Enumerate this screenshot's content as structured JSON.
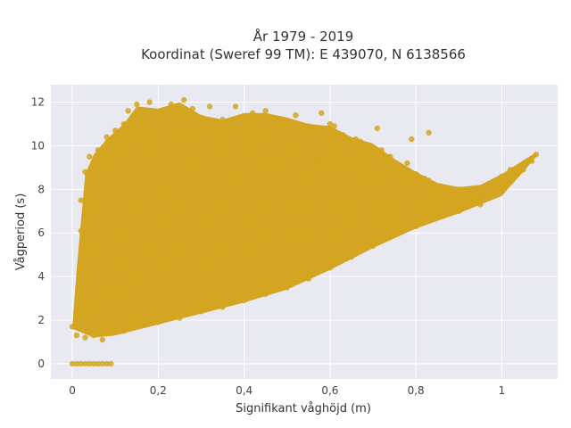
{
  "chart_data": {
    "type": "scatter",
    "title_line1": "År 1979 - 2019",
    "title_line2": "Koordinat (Sweref 99 TM): E 439070, N 6138566",
    "xlabel": "Signifikant våghöjd (m)",
    "ylabel": "Vågperiod (s)",
    "xlim": [
      -0.05,
      1.13
    ],
    "ylim": [
      -0.7,
      12.8
    ],
    "x_ticks": [
      0,
      0.2,
      0.4,
      0.6,
      0.8,
      1
    ],
    "x_tick_labels": [
      "0",
      "0,2",
      "0,4",
      "0,6",
      "0,8",
      "1"
    ],
    "y_ticks": [
      0,
      2,
      4,
      6,
      8,
      10,
      12
    ],
    "y_tick_labels": [
      "0",
      "2",
      "4",
      "6",
      "8",
      "10",
      "12"
    ],
    "grid": true,
    "marker_color": "#D4A520",
    "plot_background": "#E9E9F1",
    "series": [
      {
        "points": [
          [
            0.0,
            0.0
          ],
          [
            0.01,
            0.0
          ],
          [
            0.02,
            0.0
          ],
          [
            0.03,
            0.0
          ],
          [
            0.04,
            0.0
          ],
          [
            0.05,
            0.0
          ],
          [
            0.06,
            0.0
          ],
          [
            0.07,
            0.0
          ],
          [
            0.08,
            0.0
          ],
          [
            0.09,
            0.0
          ],
          [
            0.0,
            1.7
          ],
          [
            0.01,
            1.3
          ],
          [
            0.02,
            1.6
          ],
          [
            0.03,
            1.2
          ],
          [
            0.05,
            1.3
          ],
          [
            0.07,
            1.1
          ],
          [
            0.09,
            1.4
          ],
          [
            0.12,
            1.5
          ],
          [
            0.15,
            1.7
          ],
          [
            0.2,
            1.9
          ],
          [
            0.25,
            2.1
          ],
          [
            0.3,
            2.4
          ],
          [
            0.35,
            2.6
          ],
          [
            0.4,
            2.9
          ],
          [
            0.45,
            3.2
          ],
          [
            0.5,
            3.5
          ],
          [
            0.55,
            3.9
          ],
          [
            0.6,
            4.4
          ],
          [
            0.65,
            4.9
          ],
          [
            0.7,
            5.4
          ],
          [
            0.75,
            5.9
          ],
          [
            0.8,
            6.3
          ],
          [
            0.85,
            6.7
          ],
          [
            0.9,
            7.0
          ],
          [
            0.95,
            7.3
          ],
          [
            1.0,
            7.9
          ],
          [
            1.03,
            8.6
          ],
          [
            1.05,
            8.9
          ],
          [
            1.07,
            9.3
          ],
          [
            1.08,
            9.6
          ],
          [
            0.02,
            4.3
          ],
          [
            0.02,
            6.1
          ],
          [
            0.02,
            7.5
          ],
          [
            0.03,
            8.8
          ],
          [
            0.04,
            9.5
          ],
          [
            0.04,
            5.4
          ],
          [
            0.06,
            9.8
          ],
          [
            0.08,
            10.4
          ],
          [
            0.1,
            10.7
          ],
          [
            0.12,
            11.0
          ],
          [
            0.13,
            11.6
          ],
          [
            0.15,
            11.9
          ],
          [
            0.18,
            12.0
          ],
          [
            0.21,
            11.6
          ],
          [
            0.23,
            11.9
          ],
          [
            0.26,
            12.1
          ],
          [
            0.28,
            11.7
          ],
          [
            0.3,
            11.3
          ],
          [
            0.32,
            11.8
          ],
          [
            0.35,
            11.2
          ],
          [
            0.38,
            11.8
          ],
          [
            0.42,
            11.5
          ],
          [
            0.45,
            11.6
          ],
          [
            0.48,
            11.2
          ],
          [
            0.52,
            11.4
          ],
          [
            0.55,
            10.9
          ],
          [
            0.58,
            11.5
          ],
          [
            0.61,
            10.9
          ],
          [
            0.63,
            10.5
          ],
          [
            0.67,
            10.2
          ],
          [
            0.69,
            10.0
          ],
          [
            0.72,
            9.8
          ],
          [
            0.74,
            9.5
          ],
          [
            0.78,
            9.2
          ],
          [
            0.8,
            8.7
          ],
          [
            0.83,
            8.4
          ],
          [
            0.85,
            8.1
          ],
          [
            0.88,
            7.9
          ],
          [
            0.9,
            8.0
          ],
          [
            0.93,
            7.8
          ],
          [
            0.95,
            7.8
          ],
          [
            0.98,
            8.0
          ],
          [
            1.0,
            8.6
          ],
          [
            1.02,
            8.9
          ],
          [
            0.83,
            10.6
          ],
          [
            0.79,
            10.3
          ],
          [
            0.71,
            10.8
          ],
          [
            0.66,
            10.3
          ],
          [
            0.6,
            11.0
          ],
          [
            0.4,
            10.8
          ],
          [
            0.1,
            6.0
          ],
          [
            0.15,
            7.0
          ],
          [
            0.2,
            6.5
          ],
          [
            0.25,
            7.5
          ],
          [
            0.3,
            6.8
          ],
          [
            0.35,
            7.2
          ],
          [
            0.4,
            6.7
          ],
          [
            0.45,
            7.0
          ],
          [
            0.5,
            7.3
          ],
          [
            0.55,
            7.1
          ],
          [
            0.6,
            7.2
          ],
          [
            0.65,
            7.4
          ],
          [
            0.7,
            7.3
          ],
          [
            0.75,
            7.5
          ],
          [
            0.8,
            7.3
          ],
          [
            0.1,
            3.5
          ],
          [
            0.15,
            4.0
          ],
          [
            0.2,
            4.5
          ],
          [
            0.25,
            5.0
          ],
          [
            0.3,
            4.8
          ],
          [
            0.35,
            5.2
          ],
          [
            0.4,
            5.5
          ],
          [
            0.45,
            5.6
          ],
          [
            0.5,
            5.8
          ],
          [
            0.55,
            6.0
          ],
          [
            0.6,
            6.2
          ],
          [
            0.65,
            6.3
          ],
          [
            0.7,
            6.5
          ],
          [
            0.75,
            6.7
          ],
          [
            0.8,
            6.9
          ],
          [
            0.85,
            7.1
          ],
          [
            0.9,
            7.3
          ],
          [
            0.95,
            7.6
          ],
          [
            0.05,
            2.5
          ],
          [
            0.08,
            3.2
          ],
          [
            0.12,
            4.5
          ],
          [
            0.18,
            5.5
          ],
          [
            0.22,
            8.0
          ],
          [
            0.27,
            9.0
          ],
          [
            0.33,
            9.5
          ],
          [
            0.38,
            8.5
          ],
          [
            0.43,
            9.2
          ],
          [
            0.48,
            9.0
          ],
          [
            0.53,
            8.7
          ],
          [
            0.57,
            9.3
          ],
          [
            0.62,
            8.9
          ],
          [
            0.67,
            8.8
          ],
          [
            0.72,
            8.6
          ],
          [
            0.77,
            8.3
          ],
          [
            0.05,
            7.0
          ],
          [
            0.07,
            8.2
          ],
          [
            0.09,
            9.0
          ],
          [
            0.11,
            9.6
          ],
          [
            0.14,
            10.2
          ],
          [
            0.17,
            10.5
          ],
          [
            0.19,
            9.7
          ],
          [
            0.24,
            10.6
          ],
          [
            0.29,
            10.4
          ],
          [
            0.34,
            10.1
          ],
          [
            0.36,
            10.7
          ],
          [
            0.41,
            10.0
          ],
          [
            0.46,
            10.3
          ],
          [
            0.51,
            9.9
          ],
          [
            0.56,
            10.2
          ],
          [
            0.6,
            9.6
          ],
          [
            0.64,
            9.4
          ],
          [
            0.69,
            9.0
          ],
          [
            0.73,
            8.8
          ],
          [
            0.76,
            9.0
          ],
          [
            0.82,
            8.5
          ]
        ]
      }
    ]
  }
}
